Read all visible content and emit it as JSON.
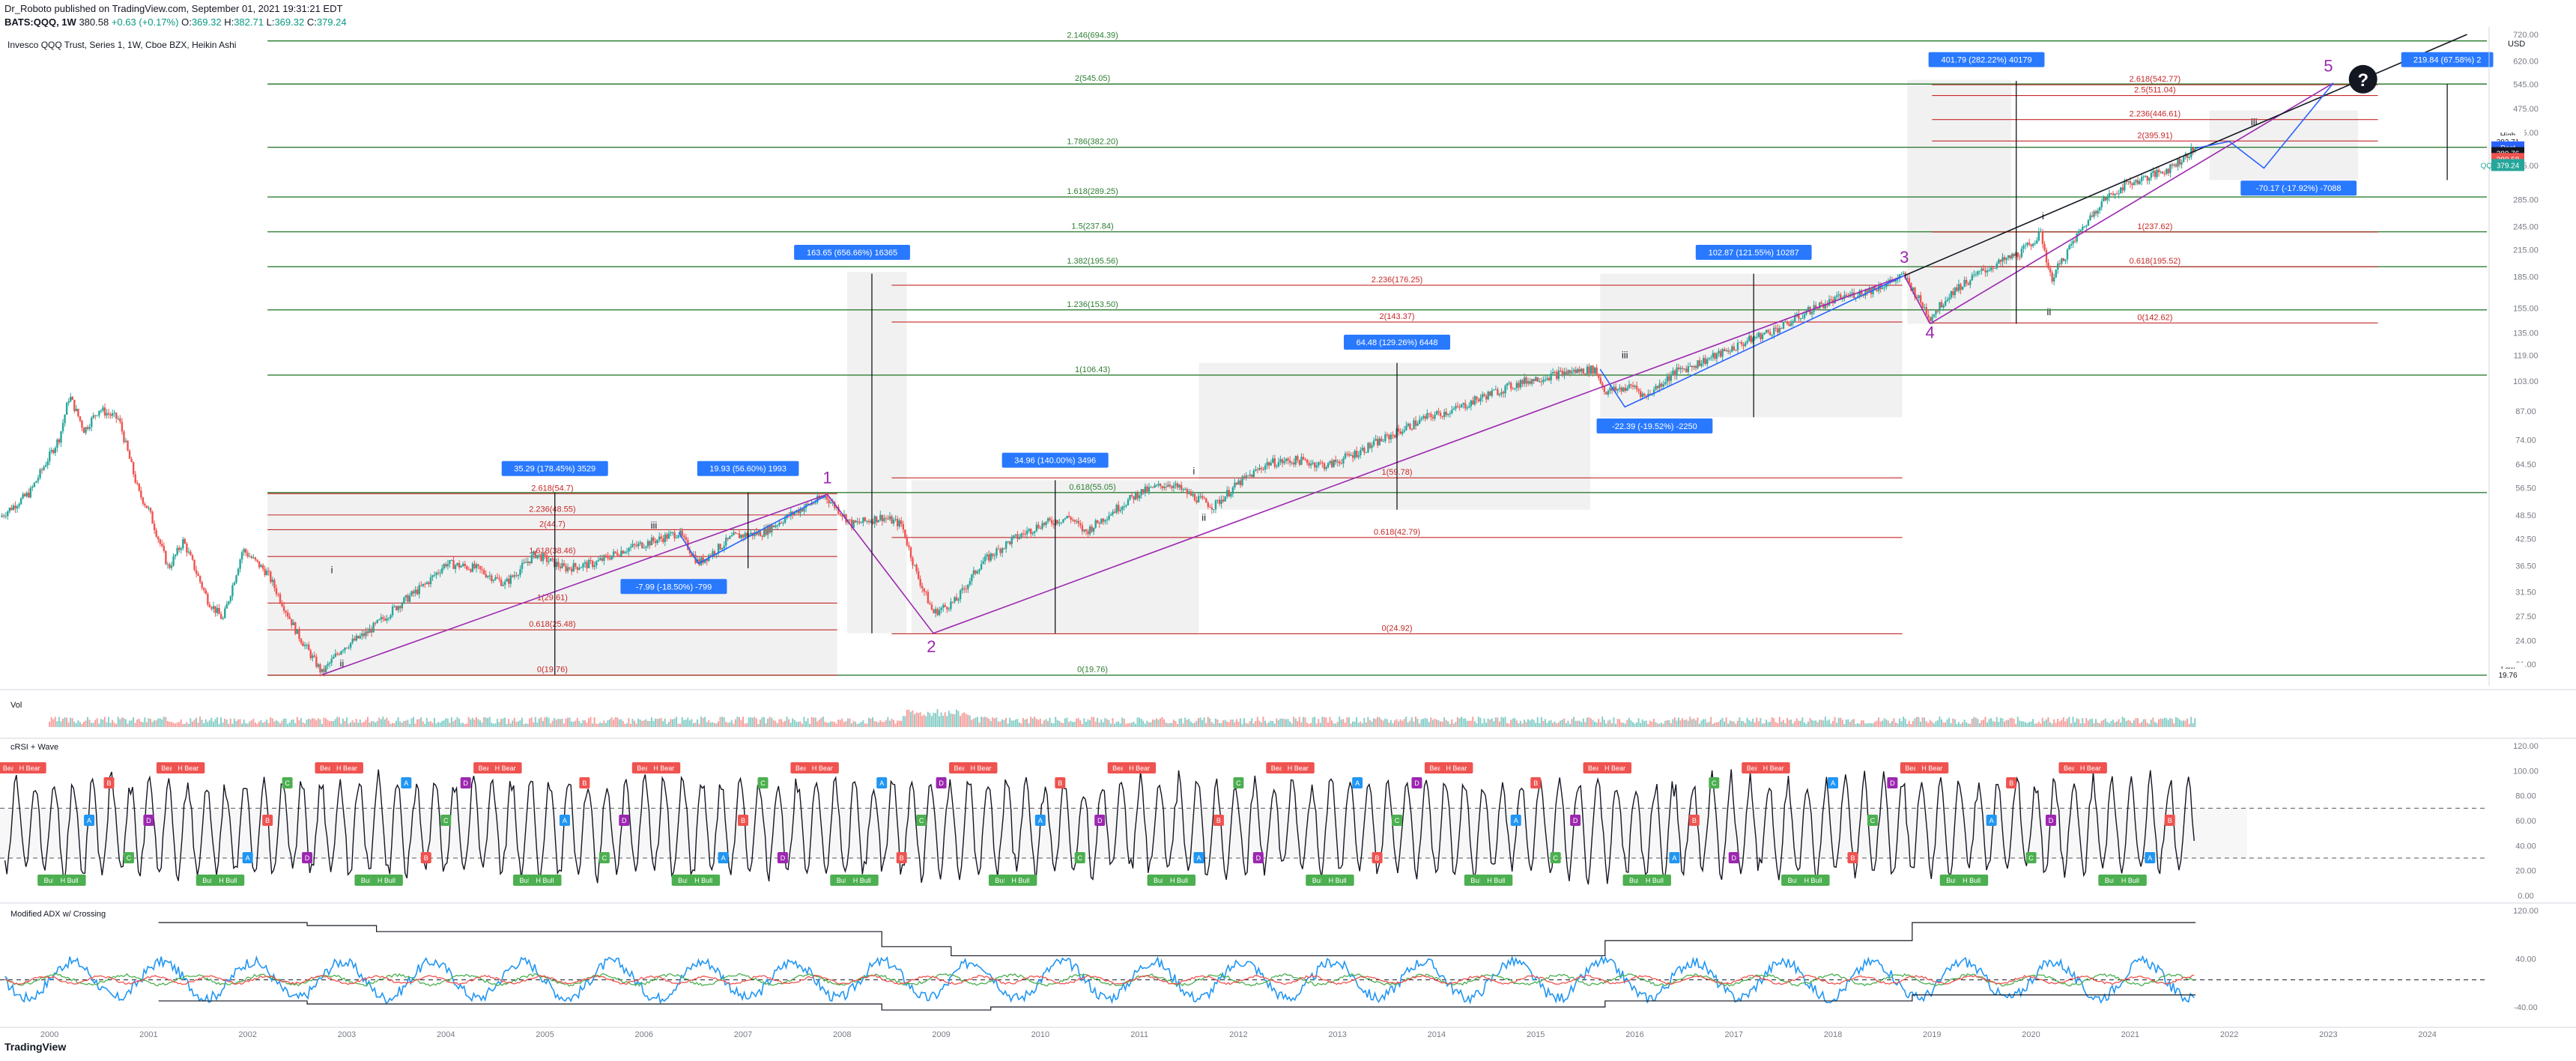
{
  "header": {
    "published": "Dr_Roboto published on TradingView.com, September 01, 2021 19:31:21 EDT",
    "symbol": "BATS:QQQ, 1W",
    "last": "380.58",
    "change": "+0.63 (+0.17%)",
    "o_label": "O:",
    "o": "369.32",
    "h_label": "H:",
    "h": "382.71",
    "l_label": "L:",
    "l": "369.32",
    "c_label": "C:",
    "c": "379.24"
  },
  "footer": {
    "brand": "TradingView"
  },
  "colors": {
    "up": "#26a69a",
    "down": "#ef5350",
    "green_fib": "#2e7d32",
    "red_fib": "#c62828",
    "purple": "#9c27b0",
    "blue": "#2962ff",
    "label_blue": "#2979ff",
    "ink": "#131722",
    "grid": "#787b86",
    "shade": "#e6e6e6"
  },
  "chart_data": {
    "type": "candlestick",
    "legend": "Invesco QQQ Trust, Series 1, 1W, Cboe BZX, Heikin Ashi",
    "currency": "USD",
    "y_scale": "log",
    "ylim": [
      19,
      720
    ],
    "xlim": [
      1999.5,
      2024.6
    ],
    "x_ticks": [
      "2000",
      "2001",
      "2002",
      "2003",
      "2004",
      "2005",
      "2006",
      "2007",
      "2008",
      "2009",
      "2010",
      "2011",
      "2012",
      "2013",
      "2014",
      "2015",
      "2016",
      "2017",
      "2018",
      "2019",
      "2020",
      "2021",
      "2022",
      "2023",
      "2024"
    ],
    "y_ticks": [
      "720.00",
      "620.00",
      "545.00",
      "475.00",
      "415.00",
      "345.00",
      "285.00",
      "245.00",
      "215.00",
      "185.00",
      "155.00",
      "135.00",
      "119.00",
      "103.00",
      "87.00",
      "74.00",
      "64.50",
      "56.50",
      "48.50",
      "42.50",
      "36.50",
      "31.50",
      "27.50",
      "24.00",
      "21.00",
      "18.00"
    ],
    "price_path": [
      [
        1999.5,
        48
      ],
      [
        1999.8,
        55
      ],
      [
        2000.1,
        75
      ],
      [
        2000.2,
        95
      ],
      [
        2000.35,
        78
      ],
      [
        2000.5,
        88
      ],
      [
        2000.7,
        83
      ],
      [
        2000.9,
        55
      ],
      [
        2001.0,
        50
      ],
      [
        2001.2,
        36
      ],
      [
        2001.35,
        42
      ],
      [
        2001.6,
        30
      ],
      [
        2001.75,
        27
      ],
      [
        2001.95,
        40
      ],
      [
        2002.2,
        35
      ],
      [
        2002.5,
        25
      ],
      [
        2002.75,
        20
      ],
      [
        2002.95,
        23
      ],
      [
        2003.2,
        25
      ],
      [
        2003.5,
        29
      ],
      [
        2003.8,
        33
      ],
      [
        2004.0,
        37
      ],
      [
        2004.3,
        36
      ],
      [
        2004.6,
        33
      ],
      [
        2004.9,
        39
      ],
      [
        2005.2,
        36
      ],
      [
        2005.5,
        37
      ],
      [
        2005.8,
        40
      ],
      [
        2006.1,
        42
      ],
      [
        2006.35,
        44
      ],
      [
        2006.55,
        37
      ],
      [
        2006.9,
        43
      ],
      [
        2007.2,
        44
      ],
      [
        2007.5,
        49
      ],
      [
        2007.83,
        54
      ],
      [
        2008.1,
        46
      ],
      [
        2008.4,
        48
      ],
      [
        2008.6,
        46
      ],
      [
        2008.75,
        35
      ],
      [
        2008.92,
        28
      ],
      [
        2009.15,
        30
      ],
      [
        2009.4,
        37
      ],
      [
        2009.7,
        42
      ],
      [
        2010.0,
        46
      ],
      [
        2010.3,
        48
      ],
      [
        2010.45,
        44
      ],
      [
        2010.7,
        49
      ],
      [
        2011.0,
        55
      ],
      [
        2011.3,
        58
      ],
      [
        2011.6,
        53
      ],
      [
        2011.75,
        51
      ],
      [
        2012.0,
        58
      ],
      [
        2012.3,
        65
      ],
      [
        2012.6,
        66
      ],
      [
        2012.9,
        64
      ],
      [
        2013.2,
        69
      ],
      [
        2013.5,
        75
      ],
      [
        2013.9,
        84
      ],
      [
        2014.2,
        88
      ],
      [
        2014.5,
        95
      ],
      [
        2014.9,
        103
      ],
      [
        2015.3,
        108
      ],
      [
        2015.6,
        110
      ],
      [
        2015.7,
        97
      ],
      [
        2016.0,
        100
      ],
      [
        2016.1,
        94
      ],
      [
        2016.4,
        108
      ],
      [
        2016.8,
        118
      ],
      [
        2017.2,
        131
      ],
      [
        2017.5,
        140
      ],
      [
        2017.8,
        155
      ],
      [
        2018.1,
        165
      ],
      [
        2018.4,
        172
      ],
      [
        2018.72,
        186
      ],
      [
        2018.85,
        165
      ],
      [
        2018.98,
        147
      ],
      [
        2019.2,
        170
      ],
      [
        2019.5,
        190
      ],
      [
        2019.9,
        212
      ],
      [
        2020.1,
        235
      ],
      [
        2020.2,
        182
      ],
      [
        2020.45,
        230
      ],
      [
        2020.7,
        280
      ],
      [
        2020.95,
        310
      ],
      [
        2021.2,
        325
      ],
      [
        2021.4,
        340
      ],
      [
        2021.66,
        380
      ]
    ],
    "h_levels_green": [
      {
        "label": "2.146(694.39)",
        "v": 694.39,
        "x0": 2002.2,
        "x1": 2024.6
      },
      {
        "label": "2(545.05)",
        "v": 545.05,
        "x0": 2002.2,
        "x1": 2024.6
      },
      {
        "label": "1.786(382.20)",
        "v": 382.2,
        "x0": 2002.2,
        "x1": 2024.6
      },
      {
        "label": "1.618(289.25)",
        "v": 289.25,
        "x0": 2002.2,
        "x1": 2024.6
      },
      {
        "label": "1.5(237.84)",
        "v": 237.84,
        "x0": 2002.2,
        "x1": 2024.6
      },
      {
        "label": "1.382(195.56)",
        "v": 195.56,
        "x0": 2002.2,
        "x1": 2024.6
      },
      {
        "label": "1.236(153.50)",
        "v": 153.5,
        "x0": 2002.2,
        "x1": 2024.6
      },
      {
        "label": "1(106.43)",
        "v": 106.43,
        "x0": 2002.2,
        "x1": 2024.6
      },
      {
        "label": "0.618(55.05)",
        "v": 55.05,
        "x0": 2002.2,
        "x1": 2024.6
      },
      {
        "label": "0(19.76)",
        "v": 19.76,
        "x0": 2002.2,
        "x1": 2024.6
      }
    ],
    "h_levels_red": [
      {
        "label": "2.618(542.77)",
        "v": 542.77,
        "x0": 2019.0,
        "x1": 2023.5
      },
      {
        "label": "2.5(511.04)",
        "v": 511.04,
        "x0": 2019.0,
        "x1": 2023.5
      },
      {
        "label": "2.236(446.61)",
        "v": 446.61,
        "x0": 2019.0,
        "x1": 2023.5
      },
      {
        "label": "2(395.91)",
        "v": 395.91,
        "x0": 2019.0,
        "x1": 2023.5
      },
      {
        "label": "1(237.62)",
        "v": 237.62,
        "x0": 2019.0,
        "x1": 2023.5
      },
      {
        "label": "0.618(195.52)",
        "v": 195.52,
        "x0": 2019.0,
        "x1": 2023.5
      },
      {
        "label": "0(142.62)",
        "v": 142.62,
        "x0": 2019.0,
        "x1": 2023.5
      },
      {
        "label": "2.236(176.25)",
        "v": 176.25,
        "x0": 2008.5,
        "x1": 2018.7
      },
      {
        "label": "2(143.37)",
        "v": 143.37,
        "x0": 2008.5,
        "x1": 2018.7
      },
      {
        "label": "1(59.78)",
        "v": 59.78,
        "x0": 2008.5,
        "x1": 2018.7
      },
      {
        "label": "0.618(42.79)",
        "v": 42.79,
        "x0": 2008.5,
        "x1": 2018.7
      },
      {
        "label": "0(24.92)",
        "v": 24.92,
        "x0": 2008.5,
        "x1": 2018.7
      },
      {
        "label": "2.618(54.7)",
        "v": 54.7,
        "x0": 2002.2,
        "x1": 2007.95
      },
      {
        "label": "2.236(48.55)",
        "v": 48.55,
        "x0": 2002.2,
        "x1": 2007.95
      },
      {
        "label": "2(44.7)",
        "v": 44.7,
        "x0": 2002.2,
        "x1": 2007.95
      },
      {
        "label": "1.618(38.46)",
        "v": 38.46,
        "x0": 2002.2,
        "x1": 2007.95
      },
      {
        "label": "1(29.61)",
        "v": 29.61,
        "x0": 2002.2,
        "x1": 2007.95
      },
      {
        "label": "0.618(25.48)",
        "v": 25.48,
        "x0": 2002.2,
        "x1": 2007.95
      },
      {
        "label": "0(19.76)",
        "v": 19.76,
        "x0": 2002.2,
        "x1": 2007.95
      }
    ],
    "shaded_boxes": [
      {
        "x0": 2002.2,
        "x1": 2007.95,
        "v0": 19.76,
        "v1": 54.7
      },
      {
        "x0": 2008.05,
        "x1": 2008.65,
        "v0": 25,
        "v1": 190
      },
      {
        "x0": 2008.7,
        "x1": 2011.6,
        "v0": 25,
        "v1": 59
      },
      {
        "x0": 2011.6,
        "x1": 2015.55,
        "v0": 50,
        "v1": 114
      },
      {
        "x0": 2015.65,
        "x1": 2018.7,
        "v0": 84,
        "v1": 188
      },
      {
        "x0": 2018.75,
        "x1": 2019.8,
        "v0": 142,
        "v1": 558
      },
      {
        "x0": 2021.8,
        "x1": 2023.3,
        "v0": 318,
        "v1": 470
      }
    ],
    "wave_labels": [
      {
        "text": "1",
        "x": 2007.85,
        "v": 58
      },
      {
        "text": "2",
        "x": 2008.9,
        "v": 22.5
      },
      {
        "text": "3",
        "x": 2018.72,
        "v": 200
      },
      {
        "text": "4",
        "x": 2018.98,
        "v": 131
      },
      {
        "text": "5",
        "x": 2023.0,
        "v": 585
      }
    ],
    "sub_labels": [
      {
        "text": "i",
        "x": 2002.85,
        "v": 35
      },
      {
        "text": "ii",
        "x": 2002.95,
        "v": 20.7
      },
      {
        "text": "iii",
        "x": 2006.1,
        "v": 45
      },
      {
        "text": "i",
        "x": 2011.55,
        "v": 61
      },
      {
        "text": "ii",
        "x": 2011.65,
        "v": 47
      },
      {
        "text": "iii",
        "x": 2015.9,
        "v": 117
      },
      {
        "text": "i",
        "x": 2020.12,
        "v": 255
      },
      {
        "text": "ii",
        "x": 2020.18,
        "v": 149
      },
      {
        "text": "iii",
        "x": 2022.25,
        "v": 432
      }
    ],
    "measure_labels": [
      {
        "text": "35.29 (178.45%) 3529",
        "x": 2005.1,
        "v": 63
      },
      {
        "text": "19.93 (56.60%) 1993",
        "x": 2007.05,
        "v": 63
      },
      {
        "text": "-7.99 (-18.50%) -799",
        "x": 2006.3,
        "v": 32.5
      },
      {
        "text": "163.65 (656.66%) 16365",
        "x": 2008.1,
        "v": 212
      },
      {
        "text": "34.96 (140.00%) 3496",
        "x": 2010.15,
        "v": 66
      },
      {
        "text": "64.48 (129.26%) 6448",
        "x": 2013.6,
        "v": 128
      },
      {
        "text": "102.87 (121.55%) 10287",
        "x": 2017.2,
        "v": 212
      },
      {
        "text": "-22.39 (-19.52%) -2250",
        "x": 2016.2,
        "v": 80
      },
      {
        "text": "401.79 (282.22%) 40179",
        "x": 2019.55,
        "v": 625
      },
      {
        "text": "-70.17 (-17.92%) -7088",
        "x": 2022.7,
        "v": 304
      },
      {
        "text": "219.84 (67.58%) 2",
        "x": 2024.2,
        "v": 625
      }
    ],
    "price_tags": [
      {
        "text": "High",
        "v": 410,
        "color": "#ffffff",
        "fg": "#131722"
      },
      {
        "text": "382.71",
        "v": 395,
        "color": "#ffffff",
        "fg": "#131722"
      },
      {
        "text": "Post",
        "v": 382,
        "color": "#2962ff",
        "fg": "#ffffff"
      },
      {
        "text": "380.76",
        "v": 370,
        "color": "#131722",
        "fg": "#ffffff"
      },
      {
        "text": "380.58",
        "v": 358,
        "color": "#ef5350",
        "fg": "#ffffff"
      },
      {
        "text": "379.24",
        "v": 346,
        "color": "#26a69a",
        "fg": "#ffffff"
      },
      {
        "text": "Low",
        "v": 20.5,
        "color": "#ffffff",
        "fg": "#131722"
      },
      {
        "text": "19.76",
        "v": 19.8,
        "color": "#ffffff",
        "fg": "#131722"
      }
    ],
    "tag_prefix": "QQQ",
    "panes": {
      "vol": {
        "label": "Vol"
      },
      "crsi": {
        "label": "cRSI + Wave",
        "ticks": [
          "120.00",
          "100.00",
          "80.00",
          "60.00",
          "40.00",
          "20.00",
          "0.00"
        ],
        "signals": [
          "Bear",
          "H Bear",
          "Bull",
          "H Bull",
          "A",
          "B",
          "C",
          "D"
        ]
      },
      "adx": {
        "label": "Modified ADX w/ Crossing",
        "ticks": [
          "120.00",
          "40.00",
          "-40.00"
        ]
      }
    }
  }
}
